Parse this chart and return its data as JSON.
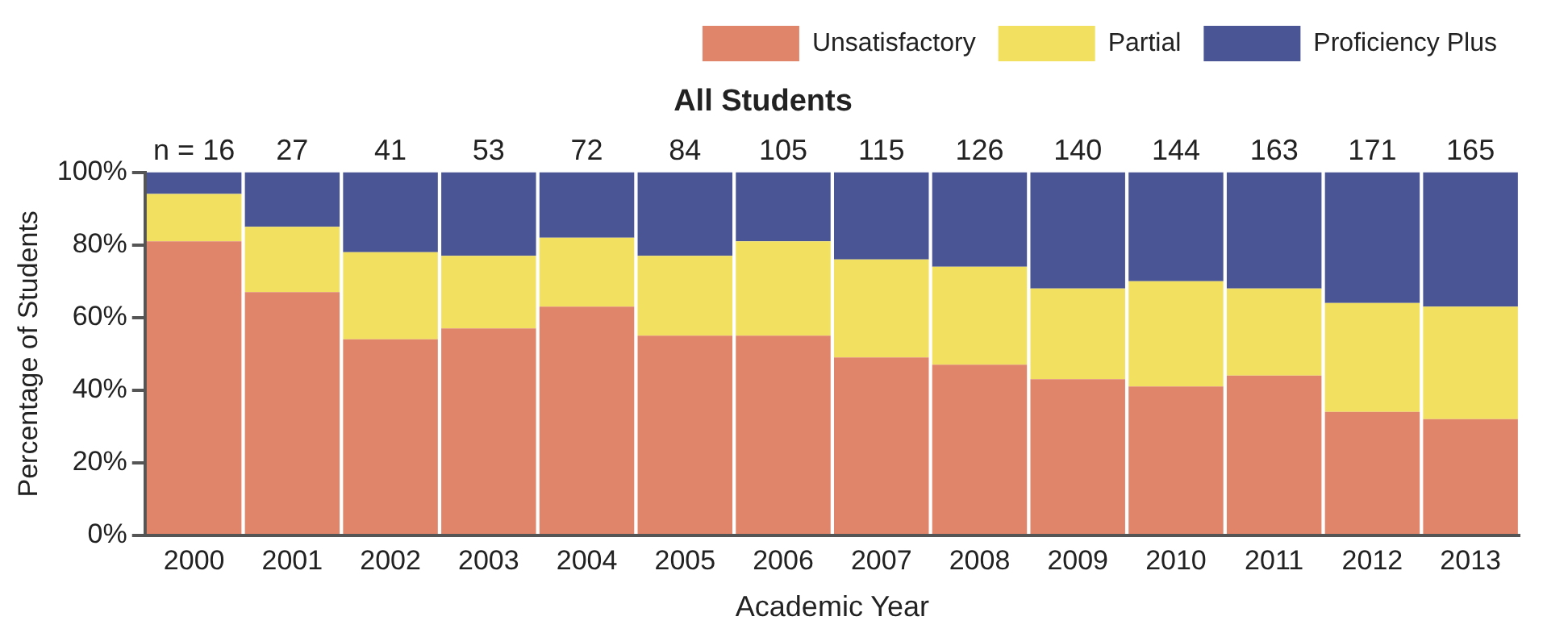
{
  "chart_data": {
    "type": "bar",
    "title": "All Students",
    "xlabel": "Academic Year",
    "ylabel": "Percentage of Students",
    "stacked": true,
    "legend": "top right",
    "grid": false,
    "categories": [
      "2000",
      "2001",
      "2002",
      "2003",
      "2004",
      "2005",
      "2006",
      "2007",
      "2008",
      "2009",
      "2010",
      "2011",
      "2012",
      "2013"
    ],
    "series": [
      {
        "name": "Unsatisfactory",
        "color": "#e0846a",
        "values": [
          81,
          67,
          54,
          57,
          63,
          55,
          55,
          49,
          47,
          43,
          41,
          44,
          34,
          32
        ]
      },
      {
        "name": "Partial",
        "color": "#f2e060",
        "values": [
          13,
          18,
          24,
          20,
          19,
          22,
          26,
          27,
          27,
          25,
          29,
          24,
          30,
          31
        ]
      },
      {
        "name": "Proficiency Plus",
        "color": "#4a5595",
        "values": [
          6,
          15,
          22,
          23,
          18,
          23,
          19,
          24,
          26,
          32,
          30,
          32,
          36,
          37
        ]
      }
    ],
    "ylim": [
      0,
      100
    ],
    "yticks": [
      {
        "value": 0,
        "label": "0%"
      },
      {
        "value": 20,
        "label": "20%"
      },
      {
        "value": 40,
        "label": "40%"
      },
      {
        "value": 60,
        "label": "60%"
      },
      {
        "value": 80,
        "label": "80%"
      },
      {
        "value": 100,
        "label": "100%"
      }
    ],
    "annotations": [
      {
        "text": "n = 16",
        "x": "2000",
        "y": 100
      },
      {
        "text": "27",
        "x": "2001",
        "y": 100
      },
      {
        "text": "41",
        "x": "2002",
        "y": 100
      },
      {
        "text": "53",
        "x": "2003",
        "y": 100
      },
      {
        "text": "72",
        "x": "2004",
        "y": 100
      },
      {
        "text": "84",
        "x": "2005",
        "y": 100
      },
      {
        "text": "105",
        "x": "2006",
        "y": 100
      },
      {
        "text": "115",
        "x": "2007",
        "y": 100
      },
      {
        "text": "126",
        "x": "2008",
        "y": 100
      },
      {
        "text": "140",
        "x": "2009",
        "y": 100
      },
      {
        "text": "144",
        "x": "2010",
        "y": 100
      },
      {
        "text": "163",
        "x": "2011",
        "y": 100
      },
      {
        "text": "171",
        "x": "2012",
        "y": 100
      },
      {
        "text": "165",
        "x": "2013",
        "y": 100
      }
    ]
  }
}
